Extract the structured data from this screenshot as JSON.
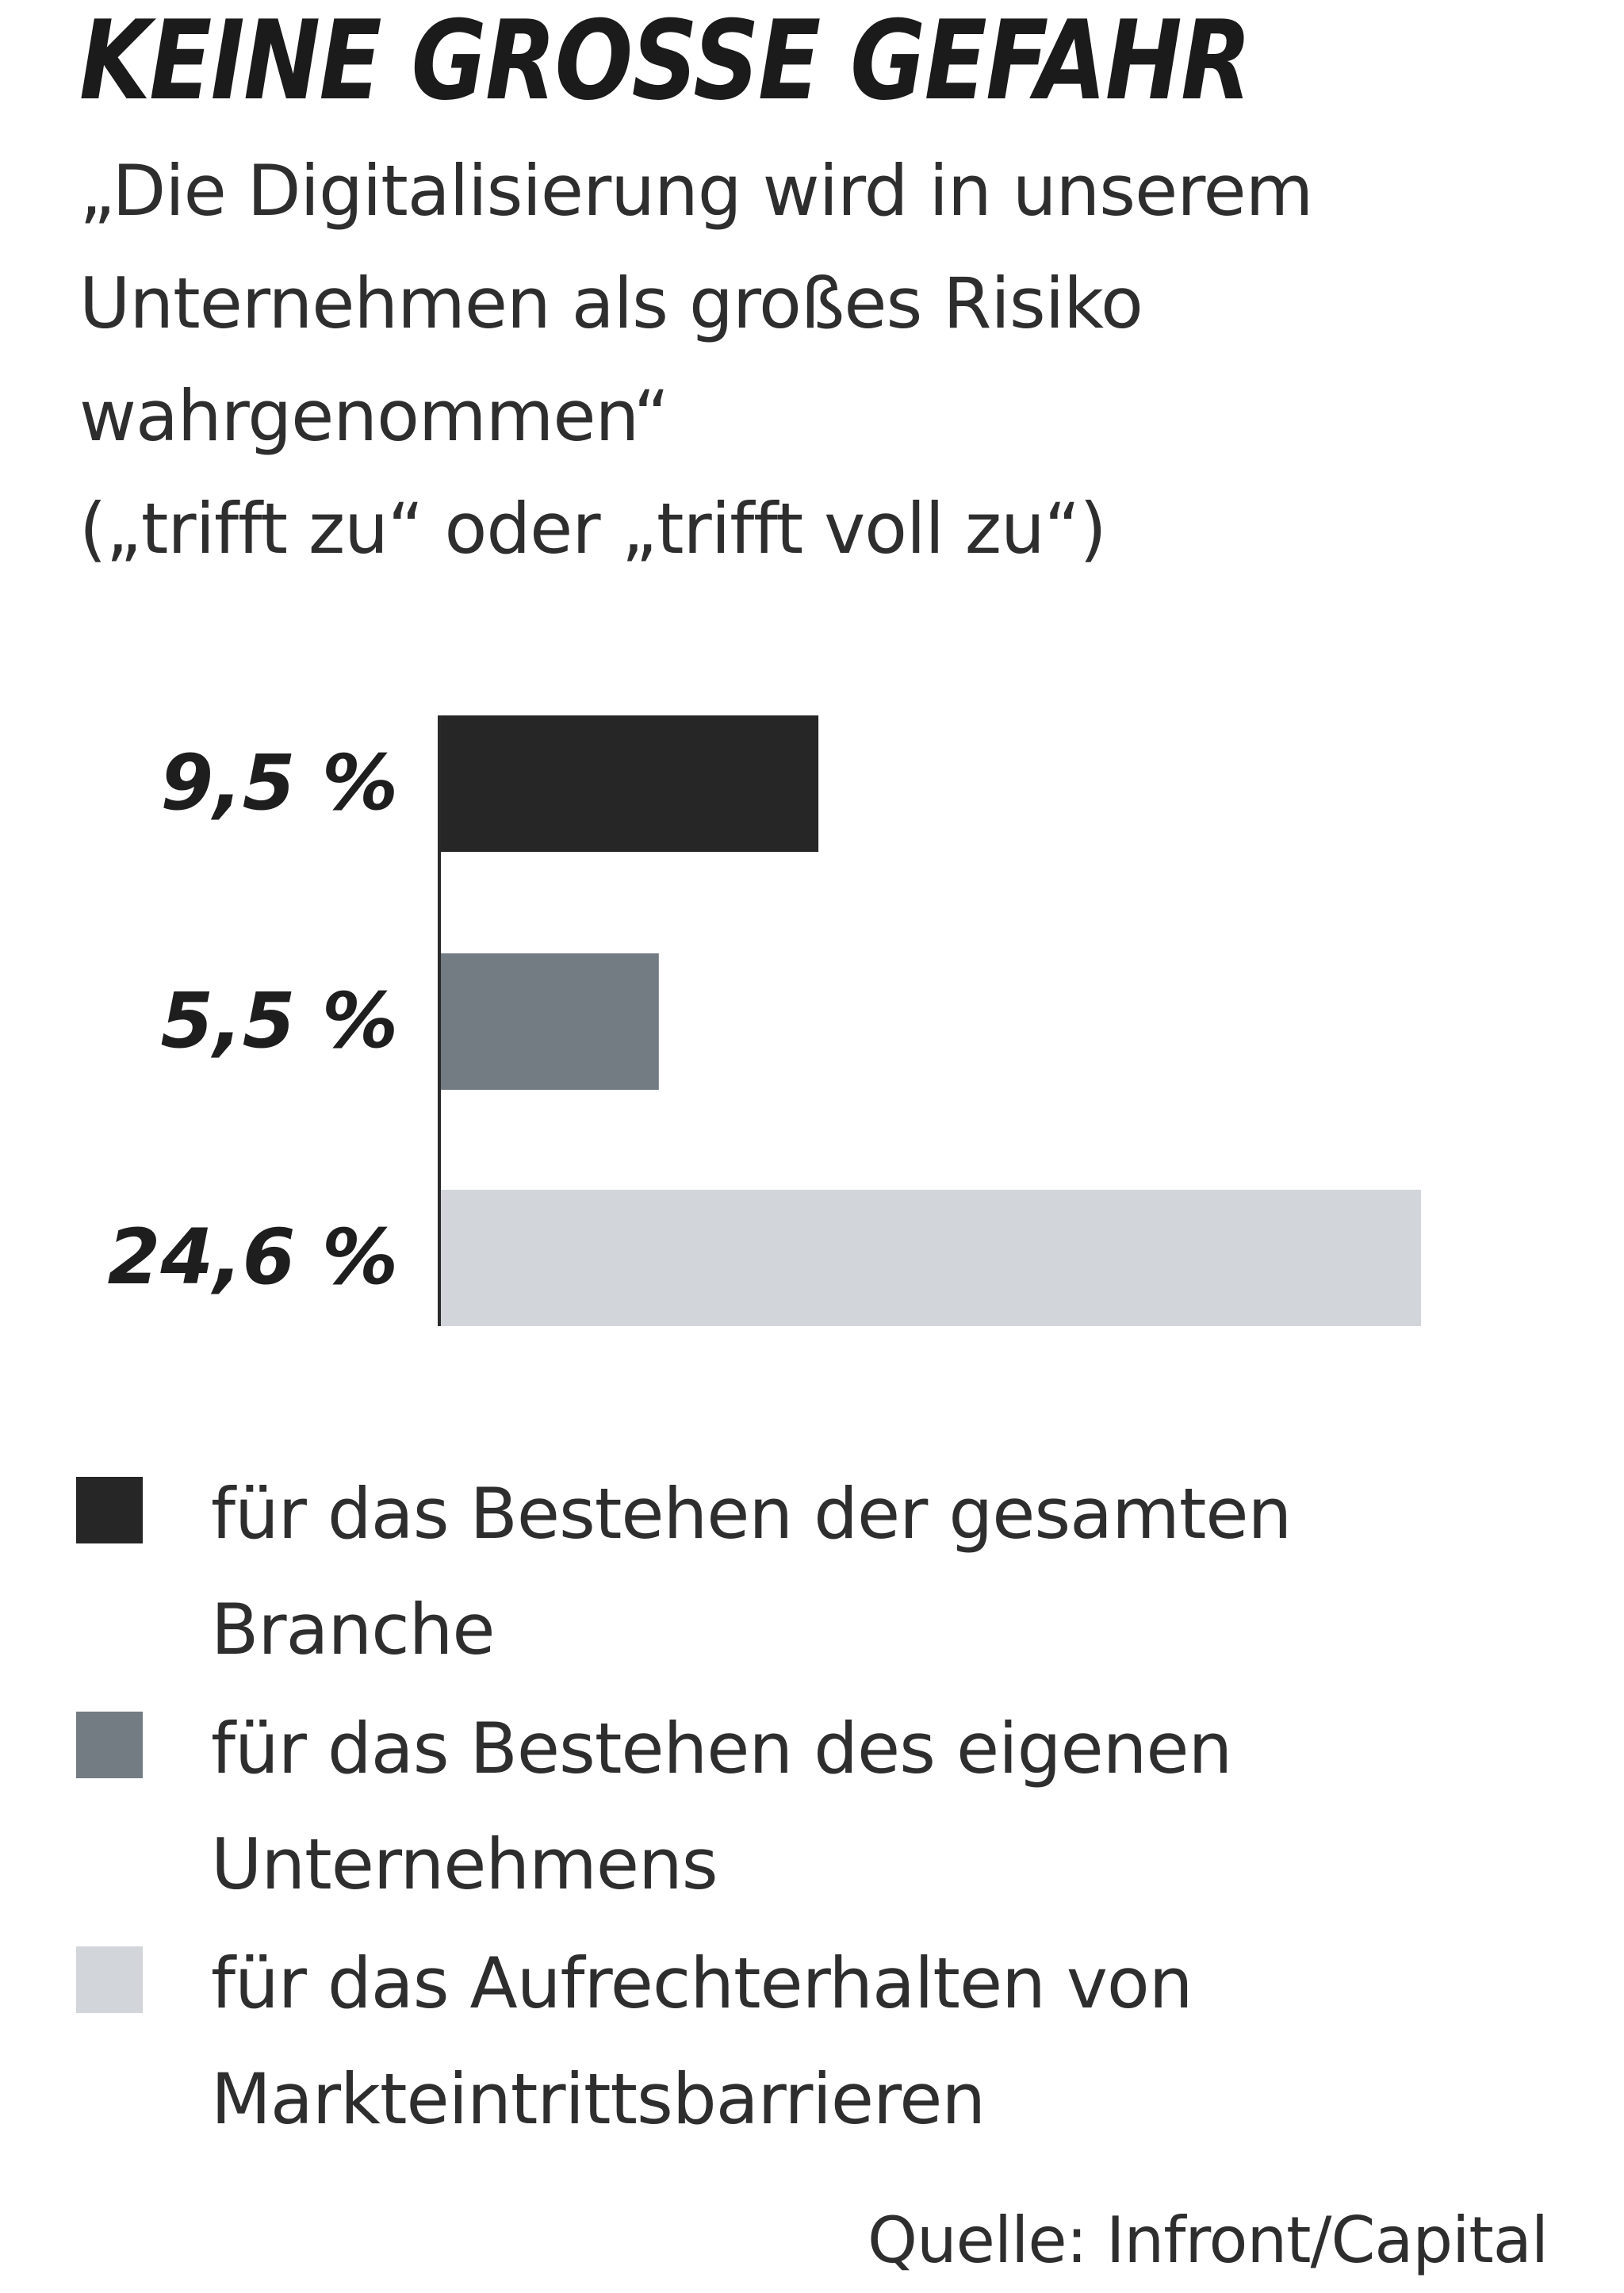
{
  "title": "KEINE GROSSE GEFAHR",
  "subtitle": [
    "„Die Digitalisierung wird in unserem",
    "Unternehmen als großes Risiko",
    "wahrgenommen“",
    "(„trifft zu“ oder „trifft voll zu“)"
  ],
  "chart_data": {
    "type": "bar",
    "orientation": "horizontal",
    "grid": false,
    "legend_position": "bottom",
    "series": [
      {
        "name": "für das Bestehen der gesamten Branche",
        "name_lines": [
          "für das Bestehen der gesamten",
          "Branche"
        ],
        "value": 9.5,
        "label": "9,5 %",
        "color": "#262626"
      },
      {
        "name": "für das Bestehen des eigenen Unternehmens",
        "name_lines": [
          "für das Bestehen des eigenen",
          "Unternehmens"
        ],
        "value": 5.5,
        "label": "5,5 %",
        "color": "#737b83"
      },
      {
        "name": "für das Aufrechterhalten von Markteintrittsbarrieren",
        "name_lines": [
          "für das Aufrechterhalten von",
          "Markteintrittsbarrieren"
        ],
        "value": 24.6,
        "label": "24,6 %",
        "color": "#d2d5d9"
      }
    ]
  },
  "source": "Quelle: Infront/Capital"
}
